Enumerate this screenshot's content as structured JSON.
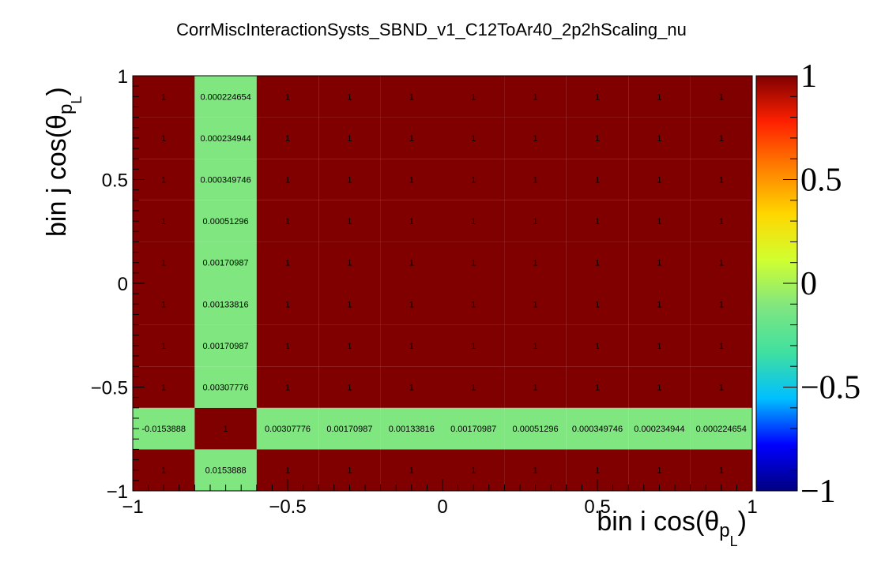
{
  "chart_data": {
    "type": "heatmap",
    "title": "CorrMiscInteractionSysts_SBND_v1_C12ToAr40_2p2hScaling_nu",
    "xlabel": "bin i cos(θ",
    "xlabel_sub": "p",
    "xlabel_sub2": "L",
    "ylabel": "bin j cos(θ",
    "ylabel_sub": "p",
    "ylabel_sub2": "L",
    "xlim": [
      -1,
      1
    ],
    "ylim": [
      -1,
      1
    ],
    "x_ticks": [
      "−1",
      "−0.5",
      "0",
      "0.5",
      "1"
    ],
    "y_ticks": [
      "−1",
      "−0.5",
      "0",
      "0.5",
      "1"
    ],
    "palette_ticks": [
      "−1",
      "−0.5",
      "0",
      "0.5",
      "1"
    ],
    "zlim": [
      -1,
      1
    ],
    "x_bin_edges": [
      -1,
      -0.8,
      -0.6,
      -0.4,
      -0.2,
      0,
      0.2,
      0.4,
      0.6,
      0.8,
      1
    ],
    "y_bin_edges": [
      -1,
      -0.8,
      -0.6,
      -0.4,
      -0.2,
      0,
      0.2,
      0.4,
      0.6,
      0.8,
      1
    ],
    "rows": [
      {
        "values": [
          1,
          0.0153888,
          1,
          1,
          1,
          1,
          1,
          1,
          1,
          1
        ],
        "labels": [
          "1",
          "0.0153888",
          "1",
          "1",
          "1",
          "1",
          "1",
          "1",
          "1",
          "1"
        ]
      },
      {
        "values": [
          -0.0153888,
          1,
          0.00307776,
          0.00170987,
          0.00133816,
          0.00170987,
          0.00051296,
          0.000349746,
          0.000234944,
          0.000224654
        ],
        "labels": [
          "-0.0153888",
          "1",
          "0.00307776",
          "0.00170987",
          "0.00133816",
          "0.00170987",
          "0.00051296",
          "0.000349746",
          "0.000234944",
          "0.000224654"
        ]
      },
      {
        "values": [
          1,
          0.00307776,
          1,
          1,
          1,
          1,
          1,
          1,
          1,
          1
        ],
        "labels": [
          "1",
          "0.00307776",
          "1",
          "1",
          "1",
          "1",
          "1",
          "1",
          "1",
          "1"
        ]
      },
      {
        "values": [
          1,
          0.00170987,
          1,
          1,
          1,
          1,
          1,
          1,
          1,
          1
        ],
        "labels": [
          "1",
          "0.00170987",
          "1",
          "1",
          "1",
          "1",
          "1",
          "1",
          "1",
          "1"
        ]
      },
      {
        "values": [
          1,
          0.00133816,
          1,
          1,
          1,
          1,
          1,
          1,
          1,
          1
        ],
        "labels": [
          "1",
          "0.00133816",
          "1",
          "1",
          "1",
          "1",
          "1",
          "1",
          "1",
          "1"
        ]
      },
      {
        "values": [
          1,
          0.00170987,
          1,
          1,
          1,
          1,
          1,
          1,
          1,
          1
        ],
        "labels": [
          "1",
          "0.00170987",
          "1",
          "1",
          "1",
          "1",
          "1",
          "1",
          "1",
          "1"
        ]
      },
      {
        "values": [
          1,
          0.00051296,
          1,
          1,
          1,
          1,
          1,
          1,
          1,
          1
        ],
        "labels": [
          "1",
          "0.00051296",
          "1",
          "1",
          "1",
          "1",
          "1",
          "1",
          "1",
          "1"
        ]
      },
      {
        "values": [
          1,
          0.000349746,
          1,
          1,
          1,
          1,
          1,
          1,
          1,
          1
        ],
        "labels": [
          "1",
          "0.000349746",
          "1",
          "1",
          "1",
          "1",
          "1",
          "1",
          "1",
          "1"
        ]
      },
      {
        "values": [
          1,
          0.000234944,
          1,
          1,
          1,
          1,
          1,
          1,
          1,
          1
        ],
        "labels": [
          "1",
          "0.000234944",
          "1",
          "1",
          "1",
          "1",
          "1",
          "1",
          "1",
          "1"
        ]
      },
      {
        "values": [
          1,
          0.000224654,
          1,
          1,
          1,
          1,
          1,
          1,
          1,
          1
        ],
        "labels": [
          "1",
          "0.000224654",
          "1",
          "1",
          "1",
          "1",
          "1",
          "1",
          "1",
          "1"
        ]
      }
    ],
    "colors": {
      "high": "#800000",
      "near_zero": "#80e680",
      "palette_stops": [
        "#000080",
        "#0000ff",
        "#00bfff",
        "#40e0a0",
        "#80e680",
        "#d0ff30",
        "#ffd700",
        "#ff8000",
        "#ff2000",
        "#800000"
      ]
    },
    "grid": false
  }
}
